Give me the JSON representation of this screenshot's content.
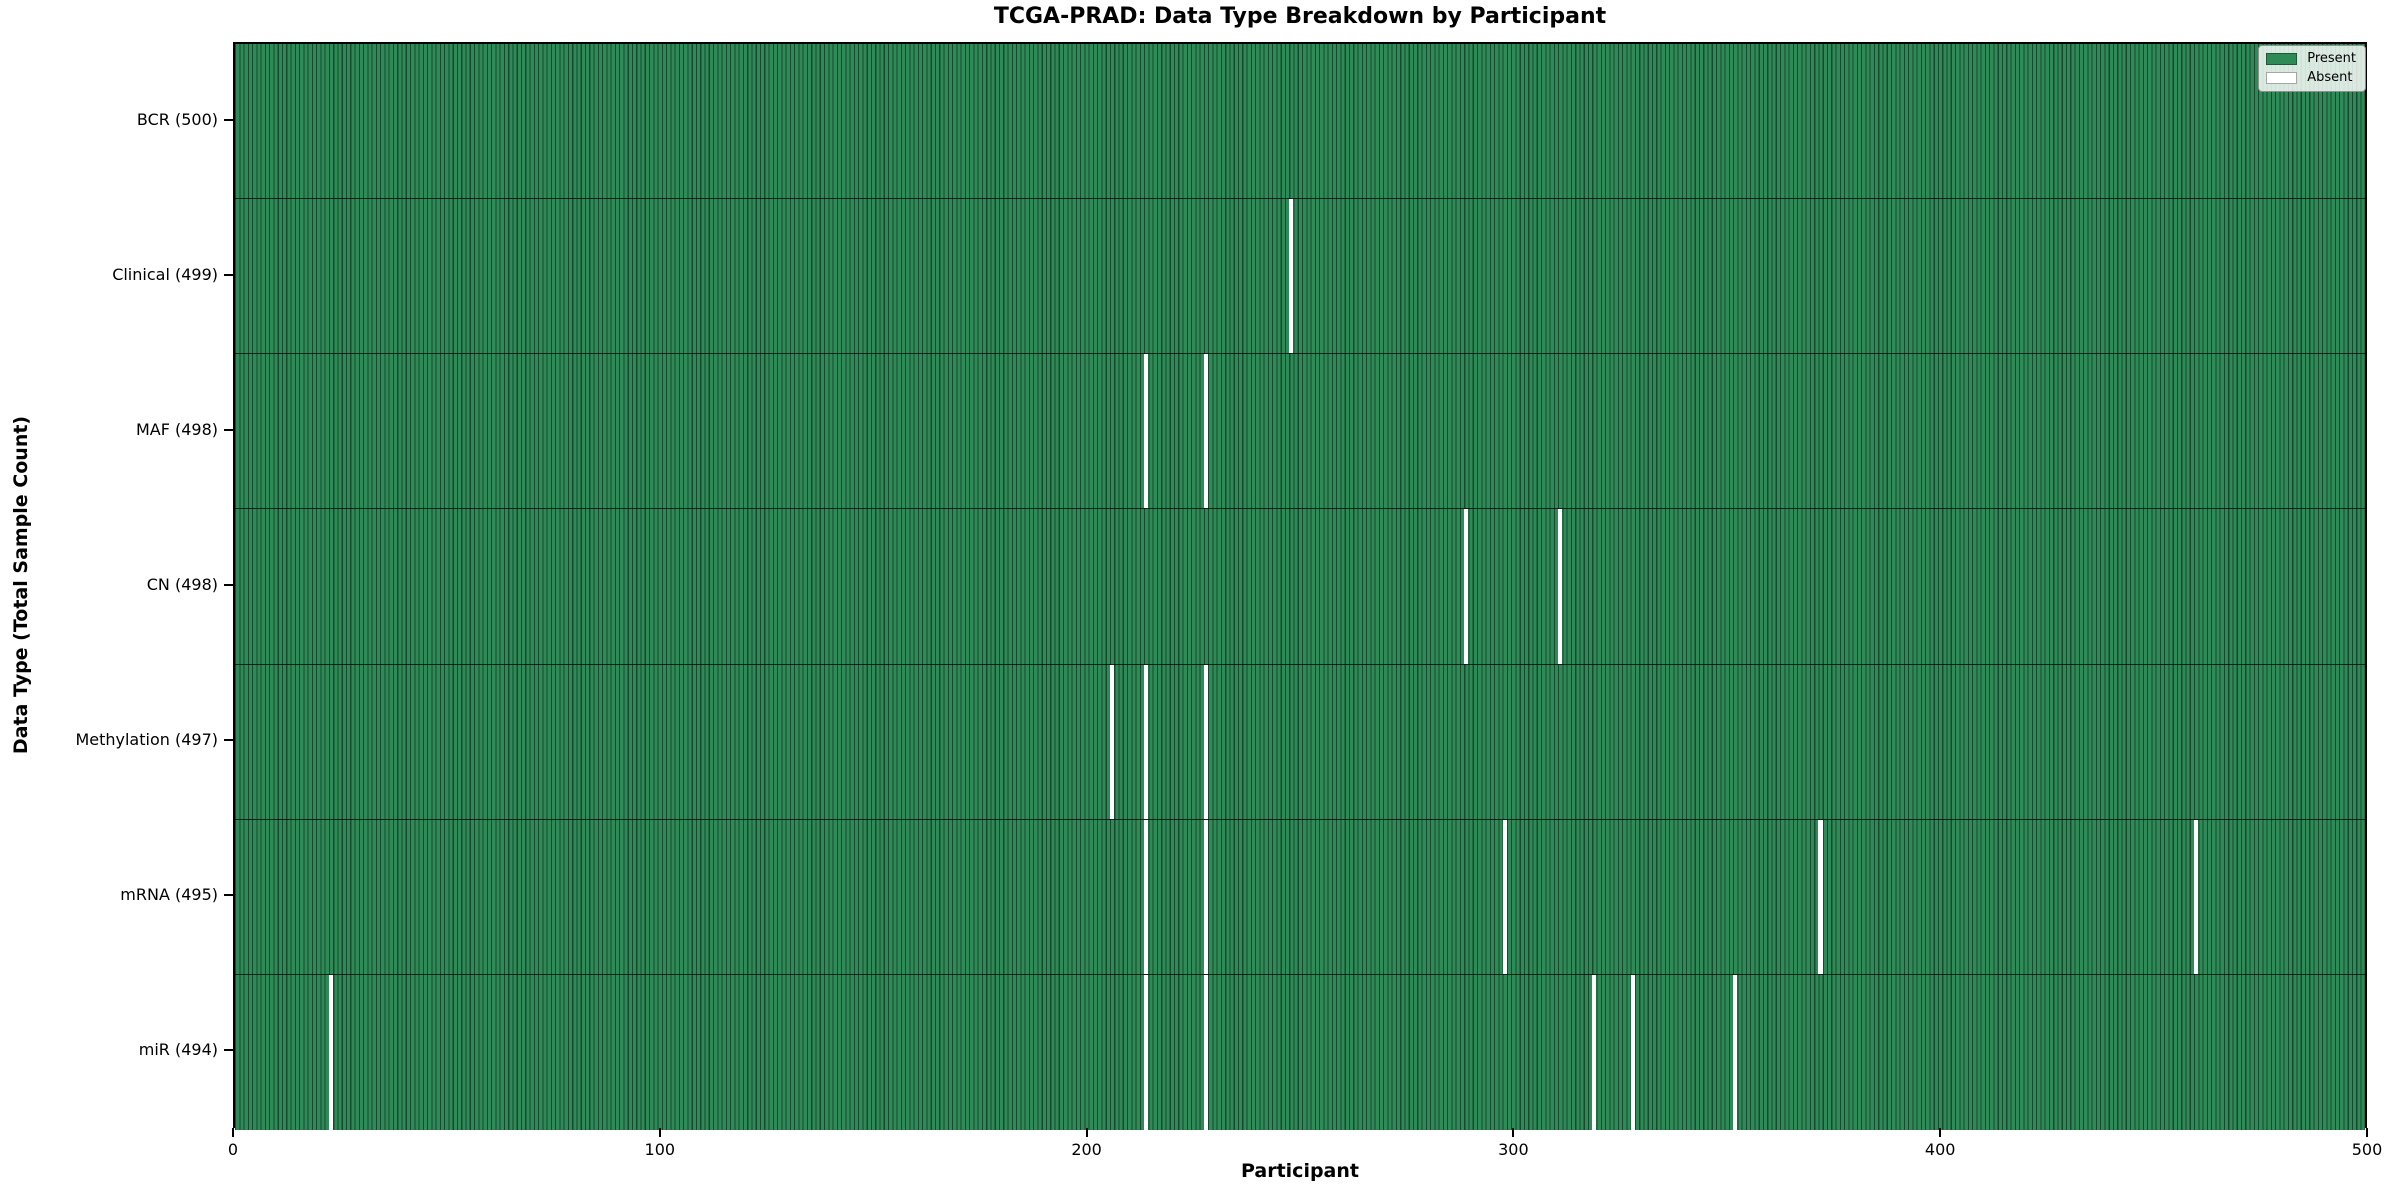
{
  "figure": {
    "title": "TCGA-PRAD: Data Type Breakdown by Participant"
  },
  "chart_data": {
    "type": "heatmap",
    "title": "TCGA-PRAD: Data Type Breakdown by Participant",
    "xlabel": "Participant",
    "ylabel": "Data Type (Total Sample Count)",
    "xlim": [
      0,
      500
    ],
    "x_ticks": [
      0,
      100,
      200,
      300,
      400,
      500
    ],
    "n_participants": 500,
    "grid": false,
    "legend_position": "upper right",
    "colors": {
      "present": "#2e8b57",
      "absent": "#ffffff",
      "cell_edge": "#1d5737"
    },
    "legend": [
      {
        "label": "Present",
        "color": "#2e8b57"
      },
      {
        "label": "Absent",
        "color": "#ffffff"
      }
    ],
    "rows": [
      {
        "label": "BCR (500)",
        "data_type": "BCR",
        "total_samples": 500,
        "absent_participants": []
      },
      {
        "label": "Clinical (499)",
        "data_type": "Clinical",
        "total_samples": 499,
        "absent_participants": [
          247
        ]
      },
      {
        "label": "MAF (498)",
        "data_type": "MAF",
        "total_samples": 498,
        "absent_participants": [
          213,
          227
        ]
      },
      {
        "label": "CN (498)",
        "data_type": "CN",
        "total_samples": 498,
        "absent_participants": [
          288,
          310
        ]
      },
      {
        "label": "Methylation (497)",
        "data_type": "Methylation",
        "total_samples": 497,
        "absent_participants": [
          205,
          213,
          227
        ]
      },
      {
        "label": "mRNA (495)",
        "data_type": "mRNA",
        "total_samples": 495,
        "absent_participants": [
          213,
          227,
          297,
          371,
          459
        ]
      },
      {
        "label": "miR (494)",
        "data_type": "miR",
        "total_samples": 494,
        "absent_participants": [
          22,
          213,
          227,
          318,
          327,
          351
        ]
      }
    ]
  }
}
